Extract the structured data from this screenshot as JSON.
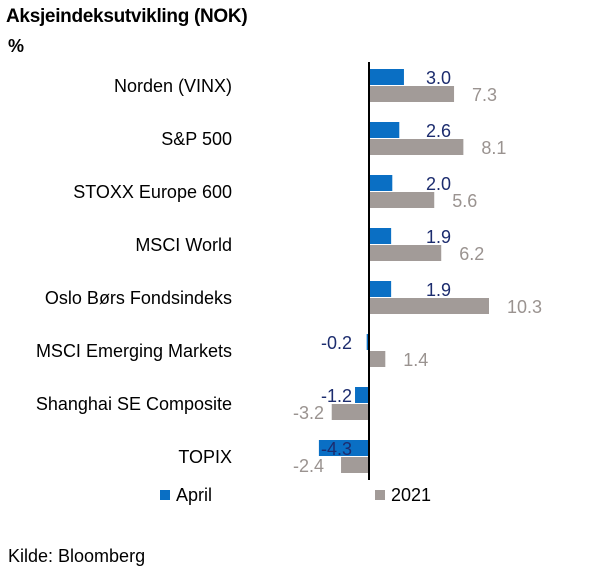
{
  "title": "Aksjeindeksutvikling (NOK)",
  "unit": "%",
  "source": "Kilde: Bloomberg",
  "colors": {
    "april": "#0a6fc4",
    "y2021": "#a29b98",
    "april_label": "#1c2c6e",
    "y2021_label": "#9a9390",
    "axis": "#000000"
  },
  "chart_data": {
    "type": "bar",
    "orientation": "horizontal",
    "title": "Aksjeindeksutvikling (NOK)",
    "unit": "%",
    "categories": [
      "Norden (VINX)",
      "S&P 500",
      "STOXX Europe 600",
      "MSCI World",
      "Oslo Børs Fondsindeks",
      "MSCI Emerging Markets",
      "Shanghai SE Composite",
      "TOPIX"
    ],
    "series": [
      {
        "name": "April",
        "values": [
          3.0,
          2.6,
          2.0,
          1.9,
          1.9,
          -0.2,
          -1.2,
          -4.3
        ]
      },
      {
        "name": "2021",
        "values": [
          7.3,
          8.1,
          5.6,
          6.2,
          10.3,
          1.4,
          -3.2,
          -2.4
        ]
      }
    ],
    "value_labels": [
      [
        "3.0",
        "2.6",
        "2.0",
        "1.9",
        "1.9",
        "-0.2",
        "-1.2",
        "-4.3"
      ],
      [
        "7.3",
        "8.1",
        "5.6",
        "6.2",
        "10.3",
        "1.4",
        "-3.2",
        "-2.4"
      ]
    ],
    "legend": "bottom",
    "grid": false
  }
}
